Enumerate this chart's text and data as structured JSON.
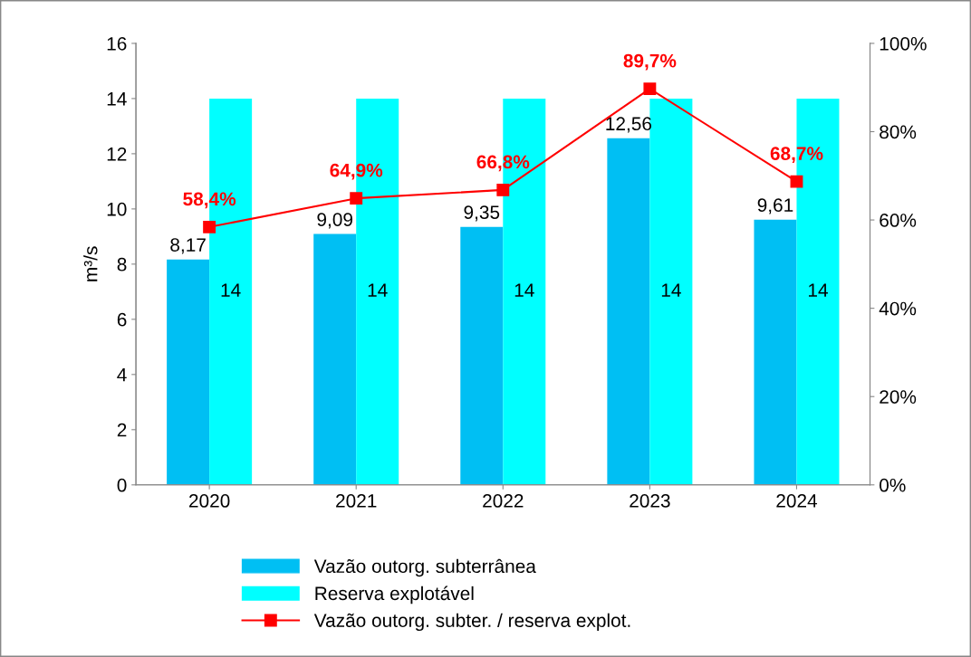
{
  "chart_data": {
    "type": "bar",
    "ylabel": "m³/s",
    "categories": [
      "2020",
      "2021",
      "2022",
      "2023",
      "2024"
    ],
    "series": [
      {
        "name": "Vazão outorg. subterrânea",
        "color": "#00bff3",
        "values": [
          8.17,
          9.09,
          9.35,
          12.56,
          9.61
        ],
        "value_labels": [
          "8,17",
          "9,09",
          "9,35",
          "12,56",
          "9,61"
        ]
      },
      {
        "name": "Reserva explotável",
        "color": "#00ffff",
        "values": [
          14,
          14,
          14,
          14,
          14
        ],
        "value_labels": [
          "14",
          "14",
          "14",
          "14",
          "14"
        ]
      },
      {
        "name": "Vazão outorg. subter. / reserva explot.",
        "type": "line",
        "axis": "y2",
        "color": "#ff0000",
        "marker": "square",
        "line_style": "solid",
        "values": [
          58.4,
          64.9,
          66.8,
          89.7,
          68.7
        ],
        "value_labels": [
          "58,4%",
          "64,9%",
          "66,8%",
          "89,7%",
          "68,7%"
        ]
      }
    ],
    "ylim": [
      0,
      16
    ],
    "yticks": [
      0,
      2,
      4,
      6,
      8,
      10,
      12,
      14,
      16
    ],
    "y2lim": [
      0,
      100
    ],
    "y2ticks": [
      {
        "value": 0,
        "label": "0%"
      },
      {
        "value": 20,
        "label": "20%"
      },
      {
        "value": 40,
        "label": "40%"
      },
      {
        "value": 60,
        "label": "60%"
      },
      {
        "value": 80,
        "label": "80%"
      },
      {
        "value": 100,
        "label": "100%"
      }
    ],
    "grid": false,
    "legend": "bottom"
  }
}
